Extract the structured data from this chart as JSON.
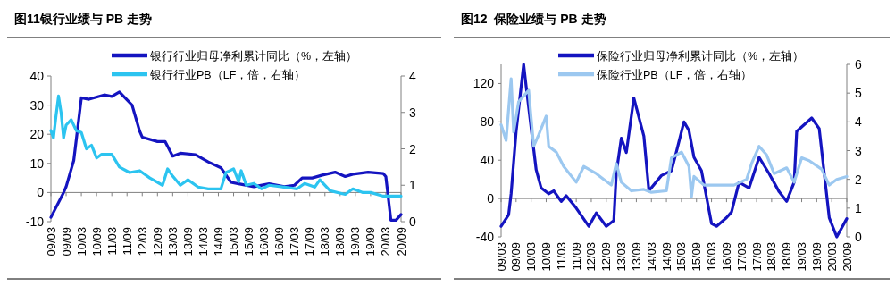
{
  "chart_data": [
    {
      "type": "line",
      "title": "图11银行业绩与 PB 走势",
      "legend": "top",
      "xlim": [
        "2009-03",
        "2020-09"
      ],
      "xticks": [
        {
          "value": "2009-03",
          "label": "09/03"
        },
        {
          "value": "2009-09",
          "label": "09/09"
        },
        {
          "value": "2010-03",
          "label": "10/03"
        },
        {
          "value": "2010-09",
          "label": "10/09"
        },
        {
          "value": "2011-03",
          "label": "11/03"
        },
        {
          "value": "2011-09",
          "label": "11/09"
        },
        {
          "value": "2012-03",
          "label": "12/03"
        },
        {
          "value": "2012-09",
          "label": "12/09"
        },
        {
          "value": "2013-03",
          "label": "13/03"
        },
        {
          "value": "2013-09",
          "label": "13/09"
        },
        {
          "value": "2014-03",
          "label": "14/03"
        },
        {
          "value": "2014-09",
          "label": "14/09"
        },
        {
          "value": "2015-03",
          "label": "15/03"
        },
        {
          "value": "2015-09",
          "label": "15/09"
        },
        {
          "value": "2016-03",
          "label": "16/03"
        },
        {
          "value": "2016-09",
          "label": "16/09"
        },
        {
          "value": "2017-03",
          "label": "17/03"
        },
        {
          "value": "2017-09",
          "label": "17/09"
        },
        {
          "value": "2018-03",
          "label": "18/03"
        },
        {
          "value": "2018-09",
          "label": "18/09"
        },
        {
          "value": "2019-03",
          "label": "19/03"
        },
        {
          "value": "2019-09",
          "label": "19/09"
        },
        {
          "value": "2020-03",
          "label": "20/03"
        },
        {
          "value": "2020-09",
          "label": "20/09"
        }
      ],
      "ylim": [
        -10,
        40
      ],
      "yticks": [
        -10,
        0,
        10,
        20,
        30,
        40
      ],
      "y2lim": [
        0,
        4
      ],
      "y2ticks": [
        0,
        1,
        2,
        3,
        4
      ],
      "series": [
        {
          "name": "银行行业归母净利累计同比（%，左轴）",
          "color": "#1414c0",
          "x": [
            "2009-03",
            "2009-08",
            "2009-09",
            "2009-12",
            "2010-03",
            "2010-06",
            "2010-12",
            "2011-03",
            "2011-06",
            "2011-11",
            "2012-02",
            "2012-03",
            "2012-09",
            "2012-12",
            "2013-03",
            "2013-06",
            "2013-12",
            "2014-05",
            "2014-10",
            "2015-02",
            "2015-05",
            "2015-11",
            "2016-05",
            "2016-11",
            "2017-03",
            "2017-06",
            "2017-10",
            "2018-02",
            "2018-07",
            "2018-11",
            "2019-02",
            "2019-08",
            "2020-02",
            "2020-03",
            "2020-05",
            "2020-07",
            "2020-09"
          ],
          "values": [
            -8.5,
            0,
            2,
            11,
            32.5,
            32,
            33.5,
            33,
            34.5,
            30,
            21,
            19,
            17.5,
            17.5,
            12.5,
            13.5,
            13,
            10.5,
            8.5,
            3.5,
            3,
            2,
            3,
            2,
            2.5,
            5,
            5,
            6,
            7,
            5.5,
            6.3,
            7,
            6.5,
            5.5,
            -9.5,
            -9.5,
            -7.5
          ]
        },
        {
          "name": "银行行业PB（LF，倍，右轴）",
          "color": "#2cc4f0",
          "axis": "y2",
          "x": [
            "2009-03",
            "2009-04",
            "2009-05",
            "2009-06",
            "2009-07",
            "2009-08",
            "2009-09",
            "2009-11",
            "2010-01",
            "2010-03",
            "2010-05",
            "2010-07",
            "2010-09",
            "2010-11",
            "2011-03",
            "2011-06",
            "2011-10",
            "2012-02",
            "2012-06",
            "2012-11",
            "2013-01",
            "2013-03",
            "2013-06",
            "2013-09",
            "2014-01",
            "2014-05",
            "2014-10",
            "2014-12",
            "2015-03",
            "2015-05",
            "2015-06",
            "2015-08",
            "2015-11",
            "2016-02",
            "2016-05",
            "2016-11",
            "2017-04",
            "2017-07",
            "2017-11",
            "2018-01",
            "2018-05",
            "2018-11",
            "2019-02",
            "2019-06",
            "2019-09",
            "2020-02",
            "2020-09"
          ],
          "values": [
            2.5,
            2.3,
            2.9,
            3.45,
            3.0,
            2.3,
            2.65,
            2.8,
            2.5,
            2.45,
            2.0,
            2.1,
            1.75,
            1.85,
            1.85,
            1.5,
            1.35,
            1.4,
            1.2,
            1.0,
            1.45,
            1.25,
            1.0,
            1.15,
            0.95,
            0.9,
            0.9,
            1.35,
            1.45,
            1.1,
            1.4,
            1.0,
            1.05,
            0.9,
            1.0,
            0.95,
            0.9,
            1.05,
            0.95,
            1.15,
            0.85,
            0.75,
            0.9,
            0.8,
            0.8,
            0.7,
            0.7
          ]
        }
      ]
    },
    {
      "type": "line",
      "title": "图12  保险业绩与 PB 走势",
      "legend": "top",
      "xlim": [
        "2009-03",
        "2020-09"
      ],
      "xticks": [
        {
          "value": "2009-03",
          "label": "09/03"
        },
        {
          "value": "2009-09",
          "label": "09/09"
        },
        {
          "value": "2010-03",
          "label": "10/03"
        },
        {
          "value": "2010-09",
          "label": "10/09"
        },
        {
          "value": "2011-03",
          "label": "11/03"
        },
        {
          "value": "2011-09",
          "label": "11/09"
        },
        {
          "value": "2012-03",
          "label": "12/03"
        },
        {
          "value": "2012-09",
          "label": "12/09"
        },
        {
          "value": "2013-03",
          "label": "13/03"
        },
        {
          "value": "2013-09",
          "label": "13/09"
        },
        {
          "value": "2014-03",
          "label": "14/03"
        },
        {
          "value": "2014-09",
          "label": "14/09"
        },
        {
          "value": "2015-03",
          "label": "15/03"
        },
        {
          "value": "2015-09",
          "label": "15/09"
        },
        {
          "value": "2016-03",
          "label": "16/03"
        },
        {
          "value": "2016-09",
          "label": "16/09"
        },
        {
          "value": "2017-03",
          "label": "17/03"
        },
        {
          "value": "2017-09",
          "label": "17/09"
        },
        {
          "value": "2018-03",
          "label": "18/03"
        },
        {
          "value": "2018-09",
          "label": "18/09"
        },
        {
          "value": "2019-03",
          "label": "19/03"
        },
        {
          "value": "2019-09",
          "label": "19/09"
        },
        {
          "value": "2020-03",
          "label": "20/03"
        },
        {
          "value": "2020-09",
          "label": "20/09"
        }
      ],
      "ylim": [
        -40,
        140
      ],
      "yticks": [
        -40,
        0,
        40,
        80,
        120
      ],
      "y2lim": [
        0,
        6
      ],
      "y2ticks": [
        0,
        1,
        2,
        3,
        4,
        5,
        6
      ],
      "series": [
        {
          "name": "保险行业归母净利累计同比（%，左轴）",
          "color": "#1414c0",
          "x": [
            "2009-03",
            "2009-06",
            "2009-07",
            "2009-09",
            "2009-12",
            "2010-01",
            "2010-05",
            "2010-07",
            "2010-10",
            "2010-12",
            "2011-03",
            "2011-05",
            "2011-09",
            "2012-02",
            "2012-05",
            "2012-09",
            "2012-12",
            "2013-01",
            "2013-03",
            "2013-05",
            "2013-08",
            "2013-12",
            "2014-02",
            "2014-07",
            "2014-11",
            "2015-01",
            "2015-04",
            "2015-06",
            "2015-08",
            "2015-11",
            "2016-03",
            "2016-05",
            "2016-09",
            "2016-11",
            "2017-02",
            "2017-06",
            "2017-10",
            "2018-02",
            "2018-06",
            "2018-09",
            "2018-12",
            "2019-01",
            "2019-07",
            "2019-10",
            "2020-02",
            "2020-05",
            "2020-09"
          ],
          "values": [
            -29,
            -17,
            5,
            70,
            140,
            117,
            30,
            11,
            5,
            8,
            -3,
            3,
            -10,
            -29,
            -15,
            -29,
            -23,
            27,
            63,
            48,
            105,
            65,
            8,
            24,
            29,
            49,
            80,
            71,
            43,
            29,
            -26,
            -29,
            -20,
            -14,
            17,
            11,
            43,
            26,
            7,
            -3,
            17,
            70,
            84,
            73,
            -20,
            -40,
            -21
          ]
        },
        {
          "name": "保险行业PB（LF，倍，右轴）",
          "color": "#9cc8f0",
          "axis": "y2",
          "x": [
            "2009-03",
            "2009-05",
            "2009-07",
            "2009-08",
            "2009-10",
            "2009-12",
            "2010-02",
            "2010-04",
            "2010-06",
            "2010-09",
            "2010-10",
            "2011-01",
            "2011-04",
            "2011-09",
            "2011-12",
            "2012-05",
            "2012-08",
            "2012-11",
            "2013-01",
            "2013-03",
            "2013-07",
            "2013-12",
            "2014-03",
            "2014-09",
            "2014-11",
            "2015-03",
            "2015-06",
            "2015-07",
            "2015-08",
            "2015-12",
            "2016-05",
            "2016-12",
            "2017-05",
            "2017-07",
            "2017-10",
            "2018-01",
            "2018-04",
            "2018-09",
            "2018-12",
            "2019-03",
            "2019-06",
            "2019-11",
            "2020-02",
            "2020-05",
            "2020-09"
          ],
          "values": [
            3.9,
            3.35,
            5.5,
            3.65,
            4.7,
            4.9,
            5.1,
            3.15,
            3.55,
            4.2,
            3.15,
            2.95,
            2.45,
            1.9,
            2.45,
            2.2,
            2.0,
            1.8,
            2.55,
            1.9,
            1.6,
            1.65,
            1.55,
            1.6,
            2.75,
            2.95,
            2.45,
            1.4,
            2.1,
            1.8,
            1.8,
            1.8,
            2.0,
            2.55,
            3.15,
            2.85,
            2.2,
            2.4,
            1.9,
            2.75,
            2.65,
            2.35,
            1.8,
            2.0,
            2.1
          ]
        }
      ]
    }
  ]
}
